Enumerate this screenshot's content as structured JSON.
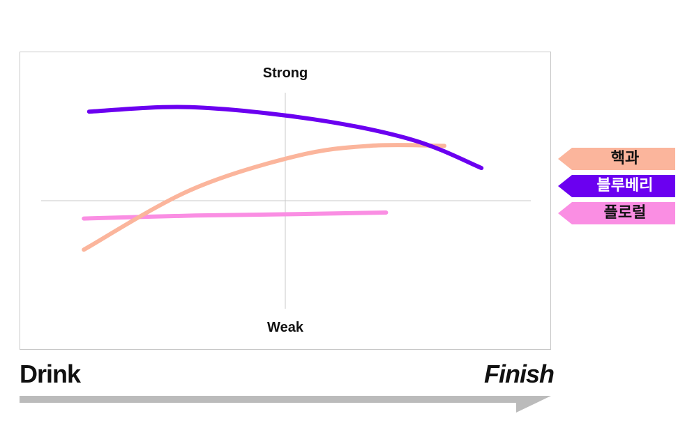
{
  "chart_data": {
    "type": "line",
    "y_axis": {
      "top_label": "Strong",
      "bottom_label": "Weak",
      "ylim": [
        -1,
        1
      ]
    },
    "x_axis": {
      "start_label": "Drink",
      "end_label": "Finish",
      "xlim": [
        0,
        1
      ]
    },
    "grid": false,
    "legend_position": "right",
    "series": [
      {
        "name": "블루베리",
        "color": "#6b00f0",
        "points": [
          [
            0.13,
            0.6
          ],
          [
            0.32,
            0.63
          ],
          [
            0.55,
            0.55
          ],
          [
            0.74,
            0.41
          ],
          [
            0.87,
            0.22
          ]
        ]
      },
      {
        "name": "핵과",
        "color": "#fbb59c",
        "points": [
          [
            0.12,
            -0.33
          ],
          [
            0.32,
            0.07
          ],
          [
            0.52,
            0.3
          ],
          [
            0.66,
            0.37
          ],
          [
            0.8,
            0.37
          ]
        ]
      },
      {
        "name": "플로럴",
        "color": "#fa8ee3",
        "points": [
          [
            0.12,
            -0.12
          ],
          [
            0.33,
            -0.1
          ],
          [
            0.52,
            -0.09
          ],
          [
            0.69,
            -0.08
          ]
        ]
      }
    ]
  },
  "legend_order": [
    1,
    0,
    2
  ],
  "legend_text_colors": [
    "#111111",
    "#ffffff",
    "#111111"
  ],
  "axis_line_color": "#c8c8c8",
  "progress_arrow_color": "#bbbbbb"
}
